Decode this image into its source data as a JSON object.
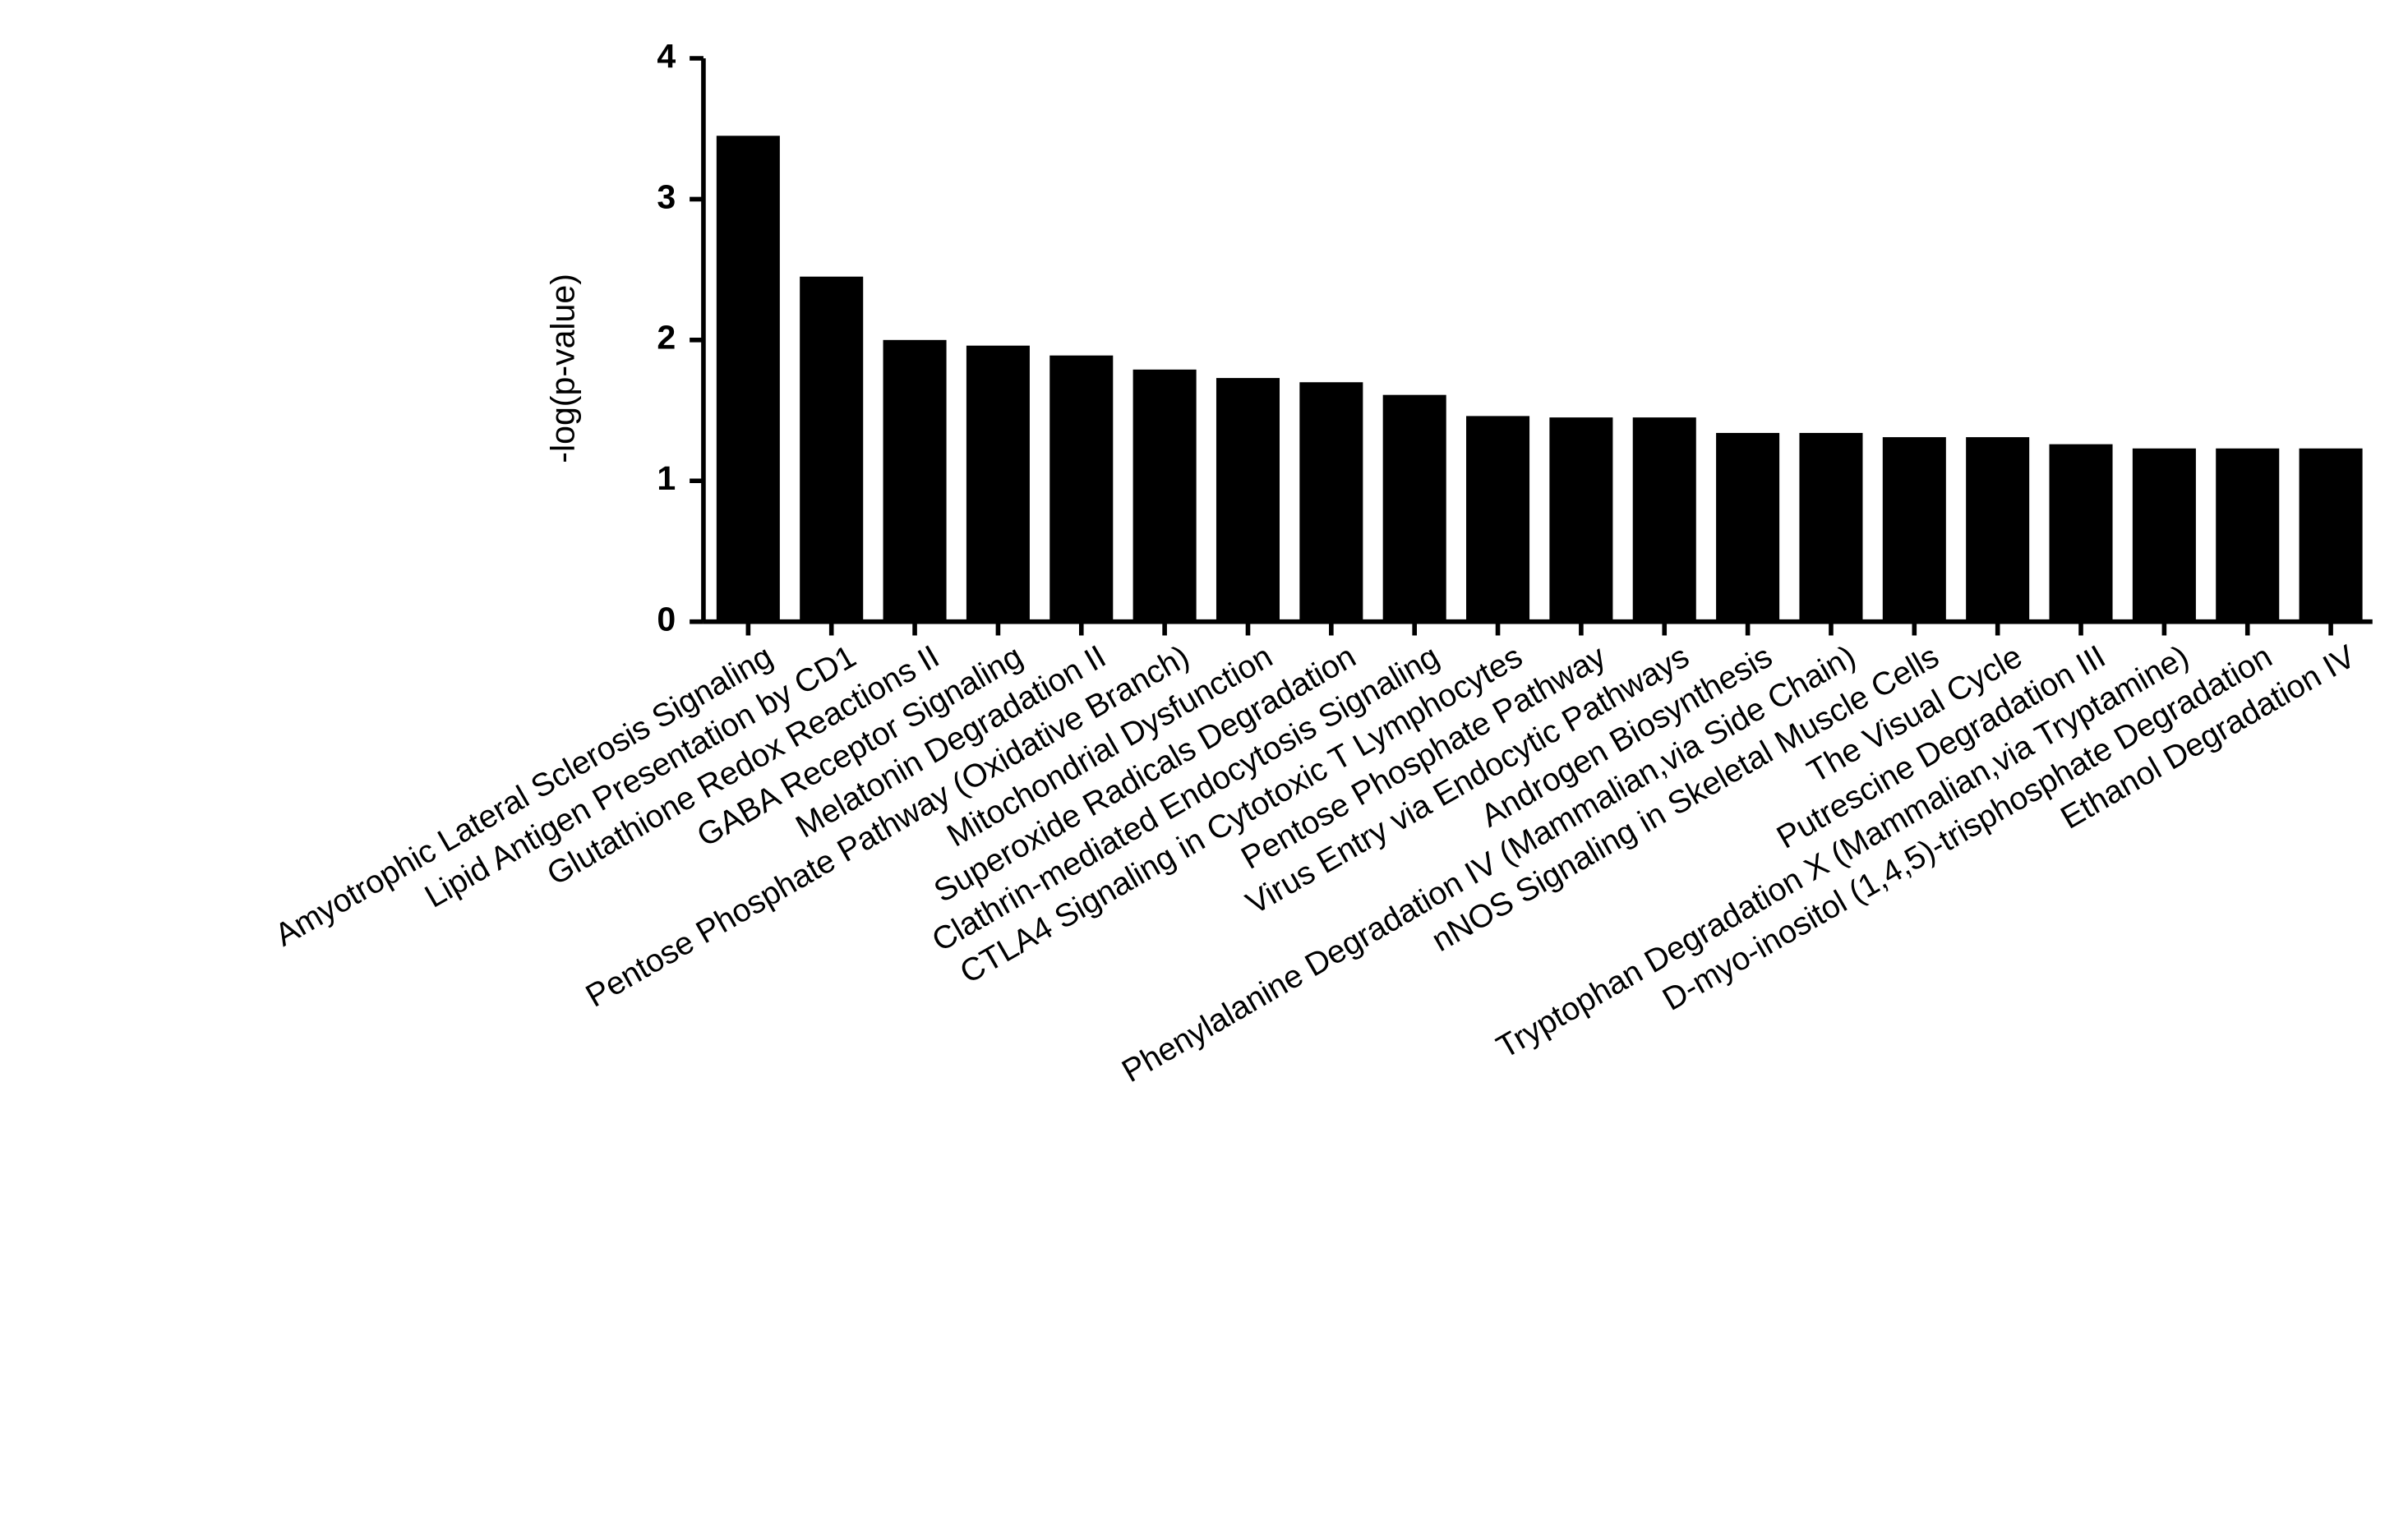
{
  "chart_data": {
    "type": "bar",
    "y_label": "-log(p-value)",
    "categories": [
      "Amyotrophic Lateral Sclerosis Signaling",
      "Lipid Antigen Presentation by CD1",
      "Glutathione Redox Reactions II",
      "GABA Receptor Signaling",
      "Melatonin Degradation II",
      "Pentose Phosphate Pathway (Oxidative Branch)",
      "Mitochondrial Dysfunction",
      "Superoxide Radicals Degradation",
      "Clathrin-mediated Endocytosis Signaling",
      "CTLA4 Signaling in Cytotoxic T Lymphocytes",
      "Pentose Phosphate Pathway",
      "Virus Entry via Endocytic Pathways",
      "Androgen Biosynthesis",
      "Phenylalanine Degradation IV (Mammalian,via Side Chain)",
      "nNOS Signaling in Skeletal Muscle Cells",
      "The Visual Cycle",
      "Putrescine Degradation III",
      "Tryptophan Degradation X (Mammalian,via Tryptamine)",
      "D-myo-inositol (1,4,5)-trisphosphate Degradation",
      "Ethanol Degradation IV"
    ],
    "values": [
      3.45,
      2.45,
      2.0,
      1.96,
      1.89,
      1.79,
      1.73,
      1.7,
      1.61,
      1.46,
      1.45,
      1.45,
      1.34,
      1.34,
      1.31,
      1.31,
      1.26,
      1.23,
      1.23,
      1.23
    ],
    "color": "#000000",
    "ylim": [
      0,
      4
    ],
    "yticks": [
      0,
      1,
      2,
      3,
      4
    ],
    "grid": false
  }
}
